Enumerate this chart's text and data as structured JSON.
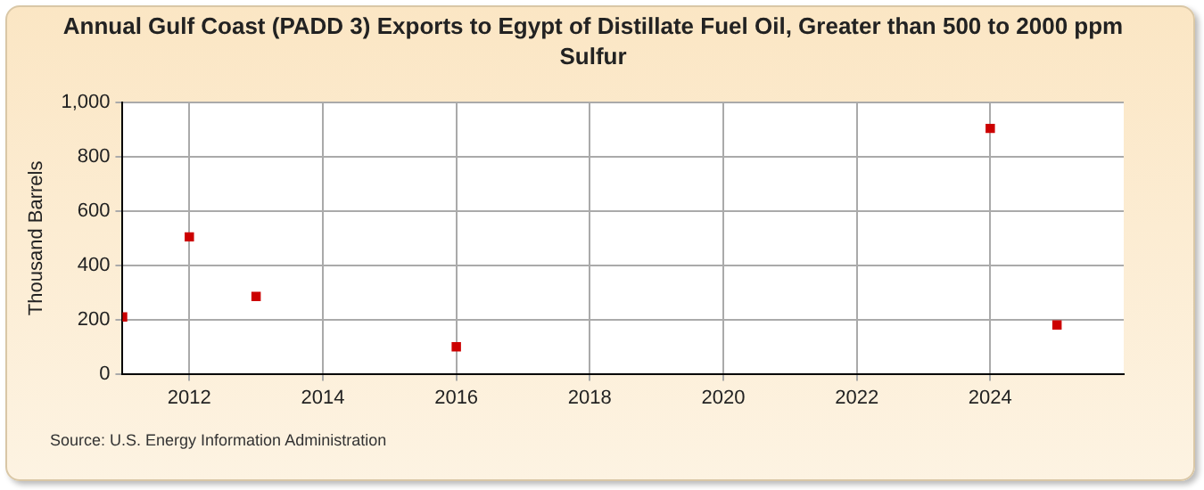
{
  "chart_data": {
    "type": "scatter",
    "title": "Annual Gulf Coast (PADD 3) Exports to Egypt of Distillate Fuel Oil, Greater than 500 to 2000 ppm Sulfur",
    "ylabel": "Thousand Barrels",
    "x": [
      2011,
      2012,
      2013,
      2016,
      2024,
      2025
    ],
    "series": [
      {
        "color": "#cc0000",
        "values": [
          210,
          505,
          285,
          100,
          905,
          180
        ]
      }
    ],
    "xlim": [
      2011,
      2026
    ],
    "xticks": [
      2012,
      2014,
      2016,
      2018,
      2020,
      2022,
      2024
    ],
    "ylim": [
      0,
      1000
    ],
    "yticks": [
      0,
      200,
      400,
      600,
      800,
      {
        "value": 1000,
        "label": "1,000"
      }
    ],
    "grid": true,
    "marker": "square",
    "legend": false,
    "annotations": [
      "Source: U.S. Energy Information Administration"
    ]
  }
}
